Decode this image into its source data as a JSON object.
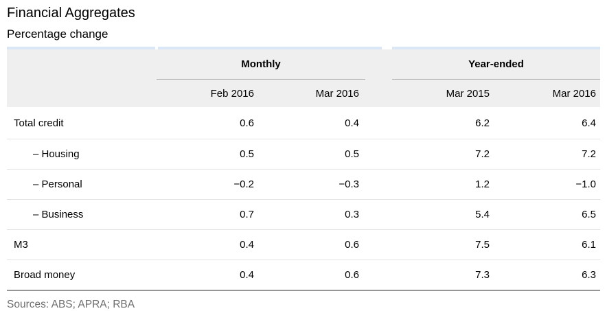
{
  "page_title": "Financial Aggregates",
  "subtitle": "Percentage change",
  "chart_data": {
    "type": "table",
    "title": "Financial Aggregates",
    "subtitle": "Percentage change",
    "column_groups": [
      {
        "label": "Monthly",
        "columns": [
          "Feb 2016",
          "Mar 2016"
        ]
      },
      {
        "label": "Year-ended",
        "columns": [
          "Mar 2015",
          "Mar 2016"
        ]
      }
    ],
    "columns": [
      "Feb 2016",
      "Mar 2016",
      "Mar 2015",
      "Mar 2016"
    ],
    "rows": [
      {
        "label": "Total credit",
        "indent": false,
        "values": [
          "0.6",
          "0.4",
          "6.2",
          "6.4"
        ]
      },
      {
        "label": "– Housing",
        "indent": true,
        "values": [
          "0.5",
          "0.5",
          "7.2",
          "7.2"
        ]
      },
      {
        "label": "– Personal",
        "indent": true,
        "values": [
          "−0.2",
          "−0.3",
          "1.2",
          "−1.0"
        ]
      },
      {
        "label": "– Business",
        "indent": true,
        "values": [
          "0.7",
          "0.3",
          "5.4",
          "6.5"
        ]
      },
      {
        "label": "M3",
        "indent": false,
        "values": [
          "0.4",
          "0.6",
          "7.5",
          "6.1"
        ]
      },
      {
        "label": "Broad money",
        "indent": false,
        "values": [
          "0.4",
          "0.6",
          "7.3",
          "6.3"
        ]
      }
    ],
    "sources": "Sources: ABS; APRA; RBA"
  },
  "colors": {
    "accent_blue": "#d9e7f6",
    "header_bg": "#efefef",
    "group_rule": "#b0b0b0",
    "row_divider": "#e3e3e3",
    "table_bottom_border": "#969696",
    "sources_text": "#6e6e6e",
    "body_text": "#000000"
  }
}
